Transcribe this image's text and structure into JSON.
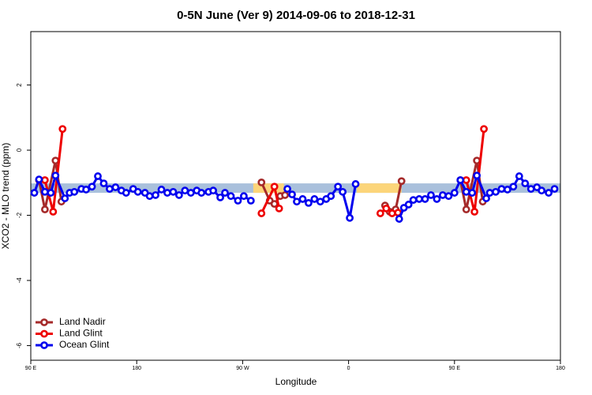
{
  "chart_data": {
    "type": "line",
    "title": "0-5N June (Ver 9)   2014-09-06 to 2018-12-31",
    "x_label": "Longitude",
    "y_label": "XCO2 - MLO trend (ppm)",
    "xlim": [
      90,
      540
    ],
    "ylim": [
      -6.45,
      3.64
    ],
    "xticks": [
      {
        "value": 90,
        "label": "90 E"
      },
      180,
      {
        "value": 270,
        "label": "90 W"
      },
      {
        "value": 360,
        "label": "0"
      },
      {
        "value": 450,
        "label": "90 E"
      },
      {
        "value": 540,
        "label": "180"
      }
    ],
    "yticks": [
      -6,
      -4,
      -2,
      0,
      2
    ],
    "legend": "bottom-left",
    "bands": [
      {
        "x": [
          90,
          540
        ],
        "y": [
          -1.31,
          -1.02
        ],
        "color": "#a9c0dc"
      },
      {
        "x": [
          279,
          305
        ],
        "y": [
          -1.31,
          -1.02
        ],
        "color": "#fcd57a"
      },
      {
        "x": [
          367,
          405
        ],
        "y": [
          -1.31,
          -1.02
        ],
        "color": "#fcd57a"
      }
    ],
    "series": [
      {
        "name": "Land Nadir",
        "color": "#a52a2a",
        "x": [
          97,
          102,
          111,
          116,
          null,
          286,
          293,
          297,
          302,
          306,
          null,
          391,
          395,
          400,
          405,
          null,
          455,
          460,
          469,
          474
        ],
        "values": [
          -0.92,
          -1.82,
          -0.32,
          -1.58,
          null,
          -0.99,
          -1.55,
          -1.65,
          -1.41,
          -1.38,
          null,
          -1.7,
          -1.89,
          -1.82,
          -0.95,
          null,
          -0.92,
          -1.82,
          -0.32,
          -1.58
        ]
      },
      {
        "name": "Land Glint",
        "color": "#ee0000",
        "x": [
          102,
          109,
          117,
          null,
          286,
          297,
          301,
          null,
          387,
          392,
          397,
          402,
          null,
          460,
          467,
          475
        ],
        "values": [
          -0.92,
          -1.89,
          0.65,
          null,
          -1.94,
          -1.12,
          -1.79,
          null,
          -1.94,
          -1.79,
          -1.94,
          -1.92,
          null,
          -0.92,
          -1.89,
          0.65
        ]
      },
      {
        "name": "Ocean Glint",
        "color": "#0000ee",
        "x": [
          93,
          97,
          102,
          107,
          111,
          119,
          123,
          127,
          133,
          137,
          142,
          147,
          152,
          157,
          162,
          167,
          171,
          177,
          181,
          187,
          191,
          196,
          201,
          206,
          211,
          216,
          221,
          226,
          231,
          235,
          241,
          245,
          251,
          255,
          260,
          266,
          271,
          277,
          null,
          308,
          312,
          316,
          321,
          326,
          331,
          336,
          341,
          345,
          351,
          355,
          361,
          366,
          null,
          403,
          407,
          411,
          415,
          420,
          425,
          430,
          435,
          440,
          445,
          450,
          455,
          460,
          465,
          469,
          477,
          480,
          485,
          490,
          495,
          500,
          505,
          510,
          515,
          520,
          524,
          530,
          535
        ],
        "values": [
          -1.31,
          -0.9,
          -1.28,
          -1.31,
          -0.78,
          -1.48,
          -1.31,
          -1.28,
          -1.19,
          -1.21,
          -1.12,
          -0.8,
          -1.02,
          -1.19,
          -1.14,
          -1.24,
          -1.31,
          -1.19,
          -1.28,
          -1.31,
          -1.41,
          -1.38,
          -1.21,
          -1.31,
          -1.28,
          -1.38,
          -1.24,
          -1.31,
          -1.24,
          -1.31,
          -1.28,
          -1.24,
          -1.45,
          -1.31,
          -1.41,
          -1.55,
          -1.41,
          -1.55,
          null,
          -1.19,
          -1.36,
          -1.58,
          -1.5,
          -1.62,
          -1.5,
          -1.58,
          -1.5,
          -1.41,
          -1.12,
          -1.28,
          -2.08,
          -1.04,
          null,
          -2.11,
          -1.77,
          -1.67,
          -1.53,
          -1.5,
          -1.5,
          -1.38,
          -1.5,
          -1.38,
          -1.41,
          -1.31,
          -0.92,
          -1.28,
          -1.31,
          -0.78,
          -1.48,
          -1.31,
          -1.28,
          -1.19,
          -1.21,
          -1.12,
          -0.8,
          -1.02,
          -1.19,
          -1.14,
          -1.24,
          -1.31,
          -1.19
        ]
      }
    ]
  }
}
